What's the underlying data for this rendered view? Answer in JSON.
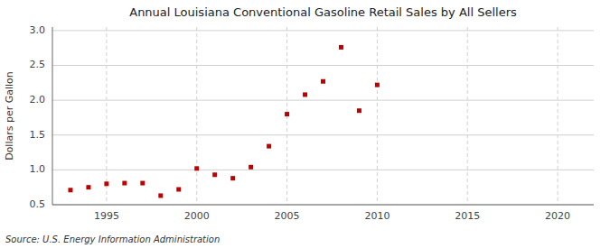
{
  "chart_data": {
    "type": "scatter",
    "title": "Annual Louisiana Conventional Gasoline Retail Sales by All Sellers",
    "y_label": "Dollars per Gallon",
    "source": "Source: U.S. Energy Information Administration",
    "x": [
      1993,
      1994,
      1995,
      1996,
      1997,
      1998,
      1999,
      2000,
      2001,
      2002,
      2003,
      2004,
      2005,
      2006,
      2007,
      2008,
      2009,
      2010
    ],
    "values": [
      0.71,
      0.75,
      0.8,
      0.81,
      0.81,
      0.63,
      0.72,
      1.02,
      0.93,
      0.88,
      1.04,
      1.34,
      1.8,
      2.08,
      2.27,
      2.76,
      1.85,
      2.22
    ],
    "color": "#c00000",
    "marker": "square",
    "grid": true,
    "xlim": [
      1992,
      2022
    ],
    "ylim": [
      0.5,
      3.05
    ],
    "xticks": [
      1995,
      2000,
      2005,
      2010,
      2015,
      2020
    ],
    "yticks": [
      0.5,
      {
        "value": 1.0,
        "label": "1.0"
      },
      1.5,
      {
        "value": 2.0,
        "label": "2.0"
      },
      2.5,
      {
        "value": 3.0,
        "label": "3.0"
      }
    ]
  }
}
